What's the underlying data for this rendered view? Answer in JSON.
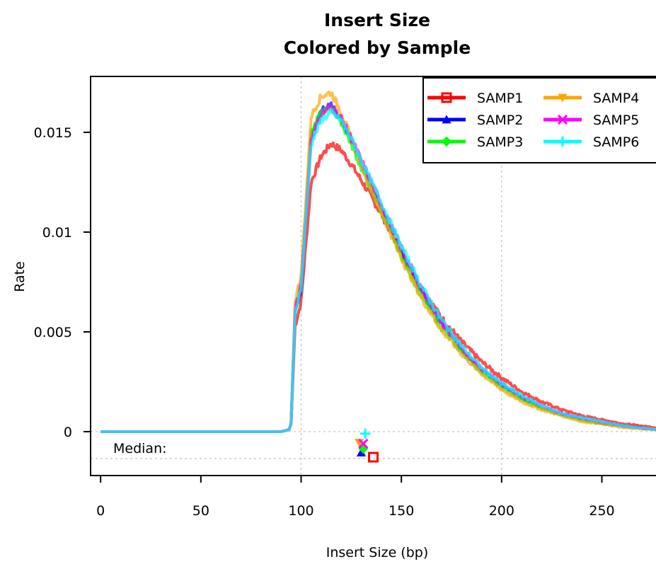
{
  "chart_data": {
    "type": "line",
    "title": "Insert Size",
    "subtitle": "Colored by Sample",
    "xlabel": "Insert Size (bp)",
    "ylabel": "Rate",
    "xlim": [
      -5,
      277
    ],
    "ylim": [
      -0.0022,
      0.0178
    ],
    "x_ticks": [
      "0",
      "50",
      "100",
      "150",
      "200",
      "250"
    ],
    "x_tick_values": [
      0,
      50,
      100,
      150,
      200,
      250
    ],
    "y_ticks": [
      "0",
      "0.005",
      "0.01",
      "0.015"
    ],
    "y_tick_values": [
      0,
      0.005,
      0.01,
      0.015
    ],
    "grid_x": [
      100,
      200
    ],
    "grid_y": [
      0,
      -0.00135
    ],
    "median_label": "Median:",
    "legend_position": "top-right",
    "series": [
      {
        "name": "SAMP1",
        "color": "#ff0000",
        "marker": "square",
        "peak": 0.01445,
        "peak_x": 115,
        "median": 136,
        "median_y": -0.00128,
        "x": [
          0,
          90,
          94,
          95,
          97,
          100,
          105,
          110,
          115,
          120,
          125,
          130,
          140,
          150,
          160,
          170,
          180,
          190,
          200,
          210,
          220,
          230,
          240,
          250,
          260,
          277
        ],
        "y": [
          0,
          0,
          0.0001,
          0.0004,
          0.0053,
          0.0065,
          0.0125,
          0.0138,
          0.01445,
          0.0141,
          0.0134,
          0.0126,
          0.0109,
          0.009,
          0.0072,
          0.0057,
          0.0045,
          0.0035,
          0.0027,
          0.002,
          0.0015,
          0.0011,
          0.0008,
          0.0006,
          0.0004,
          0.0002
        ]
      },
      {
        "name": "SAMP2",
        "color": "#0000ff",
        "marker": "triangle",
        "peak": 0.0164,
        "peak_x": 114,
        "median": 130,
        "median_y": -0.00105,
        "x": [
          0,
          90,
          94,
          95,
          97,
          100,
          105,
          110,
          115,
          120,
          125,
          130,
          140,
          150,
          160,
          170,
          180,
          190,
          200,
          210,
          220,
          230,
          240,
          250,
          260,
          277
        ],
        "y": [
          0,
          0,
          0.0001,
          0.0004,
          0.006,
          0.0072,
          0.0148,
          0.0161,
          0.0164,
          0.0157,
          0.0146,
          0.0134,
          0.0112,
          0.009,
          0.007,
          0.0054,
          0.0041,
          0.0031,
          0.0023,
          0.0017,
          0.0012,
          0.0009,
          0.0006,
          0.0004,
          0.0003,
          0.0001
        ]
      },
      {
        "name": "SAMP3",
        "color": "#00ff00",
        "marker": "diamond",
        "peak": 0.0162,
        "peak_x": 114,
        "median": 131,
        "median_y": -0.00085,
        "x": [
          0,
          90,
          94,
          95,
          97,
          100,
          105,
          110,
          115,
          120,
          125,
          130,
          140,
          150,
          160,
          170,
          180,
          190,
          200,
          210,
          220,
          230,
          240,
          250,
          260,
          277
        ],
        "y": [
          0,
          0,
          0.0001,
          0.0004,
          0.0062,
          0.0074,
          0.015,
          0.016,
          0.0162,
          0.0155,
          0.0144,
          0.0132,
          0.011,
          0.0088,
          0.0068,
          0.0052,
          0.004,
          0.003,
          0.0022,
          0.0016,
          0.0012,
          0.0008,
          0.0006,
          0.0004,
          0.0003,
          0.0001
        ]
      },
      {
        "name": "SAMP4",
        "color": "#ffa500",
        "marker": "triangle-down",
        "peak": 0.017,
        "peak_x": 113,
        "median": 129,
        "median_y": -0.00055,
        "x": [
          0,
          90,
          94,
          95,
          97,
          100,
          105,
          110,
          115,
          120,
          125,
          130,
          140,
          150,
          160,
          170,
          180,
          190,
          200,
          210,
          220,
          230,
          240,
          250,
          260,
          277
        ],
        "y": [
          0,
          0,
          0.0001,
          0.0004,
          0.0066,
          0.0078,
          0.0158,
          0.0168,
          0.017,
          0.016,
          0.0147,
          0.0134,
          0.011,
          0.0087,
          0.0067,
          0.0051,
          0.0039,
          0.0029,
          0.0021,
          0.0015,
          0.0011,
          0.0008,
          0.0005,
          0.0004,
          0.0002,
          0.0001
        ]
      },
      {
        "name": "SAMP5",
        "color": "#ff00ff",
        "marker": "x",
        "peak": 0.0163,
        "peak_x": 115,
        "median": 131,
        "median_y": -0.0006,
        "x": [
          0,
          90,
          94,
          95,
          97,
          100,
          105,
          110,
          115,
          120,
          125,
          130,
          140,
          150,
          160,
          170,
          180,
          190,
          200,
          210,
          220,
          230,
          240,
          250,
          260,
          277
        ],
        "y": [
          0,
          0,
          0.0001,
          0.0004,
          0.0061,
          0.0073,
          0.0146,
          0.0159,
          0.0163,
          0.0157,
          0.0147,
          0.0136,
          0.0114,
          0.0092,
          0.0072,
          0.0055,
          0.0042,
          0.0032,
          0.0024,
          0.0018,
          0.0013,
          0.0009,
          0.0007,
          0.0005,
          0.0003,
          0.0001
        ]
      },
      {
        "name": "SAMP6",
        "color": "#00ffff",
        "marker": "plus",
        "peak": 0.016,
        "peak_x": 116,
        "median": 132,
        "median_y": -0.0001,
        "x": [
          0,
          90,
          94,
          95,
          97,
          100,
          105,
          110,
          115,
          120,
          125,
          130,
          140,
          150,
          160,
          170,
          180,
          190,
          200,
          210,
          220,
          230,
          240,
          250,
          260,
          277
        ],
        "y": [
          0,
          0,
          0.0001,
          0.0004,
          0.006,
          0.0072,
          0.0144,
          0.0156,
          0.016,
          0.0156,
          0.0147,
          0.0136,
          0.0115,
          0.0093,
          0.0073,
          0.0056,
          0.0043,
          0.0032,
          0.0024,
          0.0018,
          0.0013,
          0.0009,
          0.0007,
          0.0005,
          0.0003,
          0.0001
        ]
      }
    ]
  }
}
